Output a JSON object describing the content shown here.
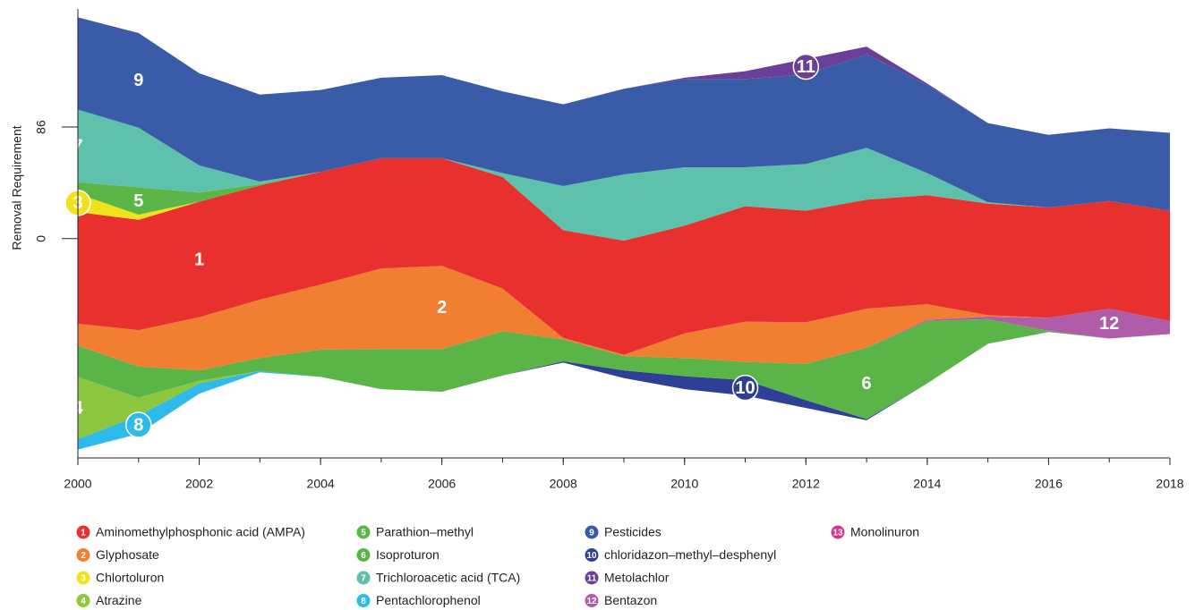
{
  "chart_data": {
    "type": "streamgraph",
    "y_label": "Removal Requirement",
    "x": [
      2000,
      2001,
      2002,
      2003,
      2004,
      2005,
      2006,
      2007,
      2008,
      2009,
      2010,
      2011,
      2012,
      2013,
      2014,
      2015,
      2016,
      2017,
      2018
    ],
    "xlim": [
      2000,
      2018
    ],
    "xticks": [
      2000,
      2002,
      2004,
      2006,
      2008,
      2010,
      2012,
      2014,
      2016,
      2018
    ],
    "ylim": [
      -169,
      177
    ],
    "yticks": [
      0,
      86
    ],
    "series": [
      {
        "marker": "1",
        "name": "Aminomethylphosphonic acid (AMPA)",
        "color": "#e8302e",
        "values": [
          86,
          85,
          89,
          88,
          87,
          85,
          83,
          86,
          83,
          88,
          83,
          89,
          86,
          84,
          84,
          86,
          85,
          83,
          85
        ]
      },
      {
        "marker": "2",
        "name": "Glyphosate",
        "color": "#f07f31",
        "values": [
          17,
          28,
          41,
          45,
          50,
          62,
          64,
          33,
          1,
          1,
          19,
          31,
          32,
          30,
          12,
          1,
          0,
          0,
          0
        ]
      },
      {
        "marker": "3",
        "name": "Chlortoluron",
        "color": "#f2e21c",
        "values": [
          14,
          4,
          0,
          0,
          0,
          0,
          0,
          0,
          0,
          0,
          0,
          0,
          0,
          0,
          0,
          0,
          0,
          0,
          0
        ]
      },
      {
        "marker": "4",
        "name": "Atrazine",
        "color": "#8dc63f",
        "values": [
          48,
          14,
          2,
          0,
          0,
          0,
          0,
          0,
          0,
          0,
          0,
          0,
          0,
          0,
          0,
          0,
          0,
          0,
          0
        ]
      },
      {
        "marker": "5",
        "name": "Parathion–methyl",
        "color": "#5cb547",
        "values": [
          9,
          21,
          7,
          1,
          0,
          0,
          0,
          0,
          0,
          0,
          0,
          0,
          0,
          0,
          0,
          0,
          0,
          0,
          0
        ]
      },
      {
        "marker": "6",
        "name": "Isoproturon",
        "color": "#5bb447",
        "values": [
          24,
          24,
          8,
          10,
          21,
          31,
          33,
          34,
          17,
          11,
          14,
          14,
          28,
          55,
          48,
          19,
          1,
          0,
          0
        ]
      },
      {
        "marker": "7",
        "name": "Trichloroacetic acid (TCA)",
        "color": "#5ec1ab",
        "values": [
          56,
          46,
          21,
          2,
          0,
          0,
          0,
          3,
          34,
          51,
          45,
          30,
          36,
          40,
          17,
          1,
          0,
          0,
          0
        ]
      },
      {
        "marker": "8",
        "name": "Pentachlorophenol",
        "color": "#2ebbec",
        "values": [
          8,
          14,
          8,
          1,
          0,
          0,
          0,
          0,
          0,
          0,
          0,
          0,
          0,
          0,
          0,
          0,
          0,
          0,
          0
        ]
      },
      {
        "marker": "9",
        "name": "Pesticides",
        "color": "#3a5ca8",
        "values": [
          71,
          73,
          71,
          67,
          63,
          62,
          64,
          63,
          63,
          66,
          68,
          68,
          69,
          72,
          68,
          61,
          56,
          56,
          60
        ]
      },
      {
        "marker": "10",
        "name": "chloridazon–methyl–desphenyl",
        "color": "#2e3f95",
        "values": [
          0,
          0,
          0,
          0,
          0,
          0,
          0,
          0,
          1,
          6,
          10,
          12,
          6,
          1,
          0,
          0,
          0,
          0,
          0
        ]
      },
      {
        "marker": "11",
        "name": "Metolachlor",
        "color": "#6b3f98",
        "values": [
          0,
          0,
          0,
          0,
          0,
          0,
          0,
          0,
          0,
          0,
          1,
          6,
          12,
          6,
          1,
          0,
          0,
          0,
          0
        ]
      },
      {
        "marker": "12",
        "name": "Bentazon",
        "color": "#b05ca8",
        "values": [
          0,
          0,
          0,
          0,
          0,
          0,
          0,
          0,
          0,
          0,
          0,
          0,
          0,
          0,
          1,
          2,
          10,
          23,
          10
        ]
      },
      {
        "marker": "13",
        "name": "Monolinuron",
        "color": "#d6338a",
        "values": [
          0,
          0,
          0,
          0,
          0,
          0,
          0,
          0,
          0,
          0,
          0,
          0,
          0,
          0,
          0,
          0,
          0,
          0,
          0
        ]
      }
    ]
  }
}
